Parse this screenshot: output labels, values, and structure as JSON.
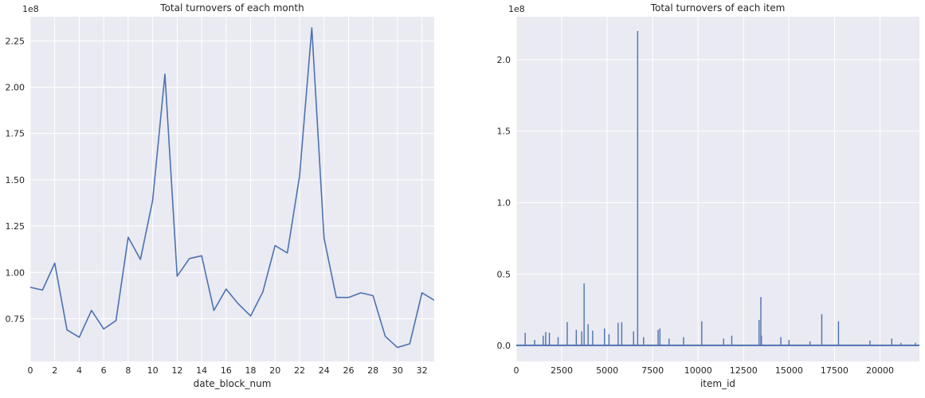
{
  "chart_data": [
    {
      "type": "line",
      "title": "Total turnovers of each month",
      "xlabel": "date_block_num",
      "ylabel": "",
      "y_offset_label": "1e8",
      "xlim": [
        0,
        33
      ],
      "ylim": [
        0.52,
        2.38
      ],
      "xticks": [
        0,
        2,
        4,
        6,
        8,
        10,
        12,
        14,
        16,
        18,
        20,
        22,
        24,
        26,
        28,
        30,
        32
      ],
      "xtick_labels": [
        "0",
        "2",
        "4",
        "6",
        "8",
        "10",
        "12",
        "14",
        "16",
        "18",
        "20",
        "22",
        "24",
        "26",
        "28",
        "30",
        "32"
      ],
      "yticks": [
        0.75,
        1.0,
        1.25,
        1.5,
        1.75,
        2.0,
        2.25
      ],
      "ytick_labels": [
        "0.75",
        "1.00",
        "1.25",
        "1.50",
        "1.75",
        "2.00",
        "2.25"
      ],
      "grid": true,
      "color": "#4c72b0",
      "series": [
        {
          "x": [
            0,
            1,
            2,
            3,
            4,
            5,
            6,
            7,
            8,
            9,
            10,
            11,
            12,
            13,
            14,
            15,
            16,
            17,
            18,
            19,
            20,
            21,
            22,
            23,
            24,
            25,
            26,
            27,
            28,
            29,
            30,
            31,
            32,
            33
          ],
          "values": [
            0.92,
            0.905,
            1.05,
            0.69,
            0.65,
            0.795,
            0.695,
            0.74,
            1.19,
            1.07,
            1.39,
            2.07,
            0.98,
            1.075,
            1.09,
            0.795,
            0.91,
            0.83,
            0.765,
            0.895,
            1.145,
            1.105,
            1.52,
            2.32,
            1.185,
            0.865,
            0.865,
            0.89,
            0.875,
            0.655,
            0.595,
            0.615,
            0.89,
            0.85
          ]
        }
      ]
    },
    {
      "type": "line",
      "title": "Total turnovers of each item",
      "xlabel": "item_id",
      "ylabel": "",
      "y_offset_label": "1e8",
      "xlim": [
        0,
        22170
      ],
      "ylim": [
        -0.11,
        2.3
      ],
      "xticks": [
        0,
        2500,
        5000,
        7500,
        10000,
        12500,
        15000,
        17500,
        20000
      ],
      "xtick_labels": [
        "0",
        "2500",
        "5000",
        "7500",
        "10000",
        "12500",
        "15000",
        "17500",
        "20000"
      ],
      "yticks": [
        0.0,
        0.5,
        1.0,
        1.5,
        2.0
      ],
      "ytick_labels": [
        "0.0",
        "0.5",
        "1.0",
        "1.5",
        "2.0"
      ],
      "grid": true,
      "color": "#4c72b0",
      "baseline": 0.002,
      "series": [
        {
          "x": [
            490,
            1010,
            1480,
            1620,
            1820,
            2300,
            2800,
            3300,
            3600,
            3730,
            3950,
            4200,
            4850,
            5100,
            5600,
            5800,
            6450,
            6675,
            7000,
            7800,
            7900,
            8400,
            9200,
            10200,
            11400,
            11850,
            13350,
            13450,
            13480,
            14550,
            15000,
            16150,
            16800,
            17720,
            19450,
            20650,
            21150,
            21950
          ],
          "values": [
            0.09,
            0.04,
            0.07,
            0.095,
            0.09,
            0.06,
            0.165,
            0.11,
            0.1,
            0.435,
            0.15,
            0.105,
            0.12,
            0.08,
            0.16,
            0.165,
            0.1,
            2.2,
            0.06,
            0.11,
            0.12,
            0.05,
            0.06,
            0.17,
            0.05,
            0.07,
            0.18,
            0.34,
            0.07,
            0.06,
            0.04,
            0.03,
            0.22,
            0.17,
            0.035,
            0.05,
            0.02,
            0.02
          ]
        }
      ]
    }
  ]
}
